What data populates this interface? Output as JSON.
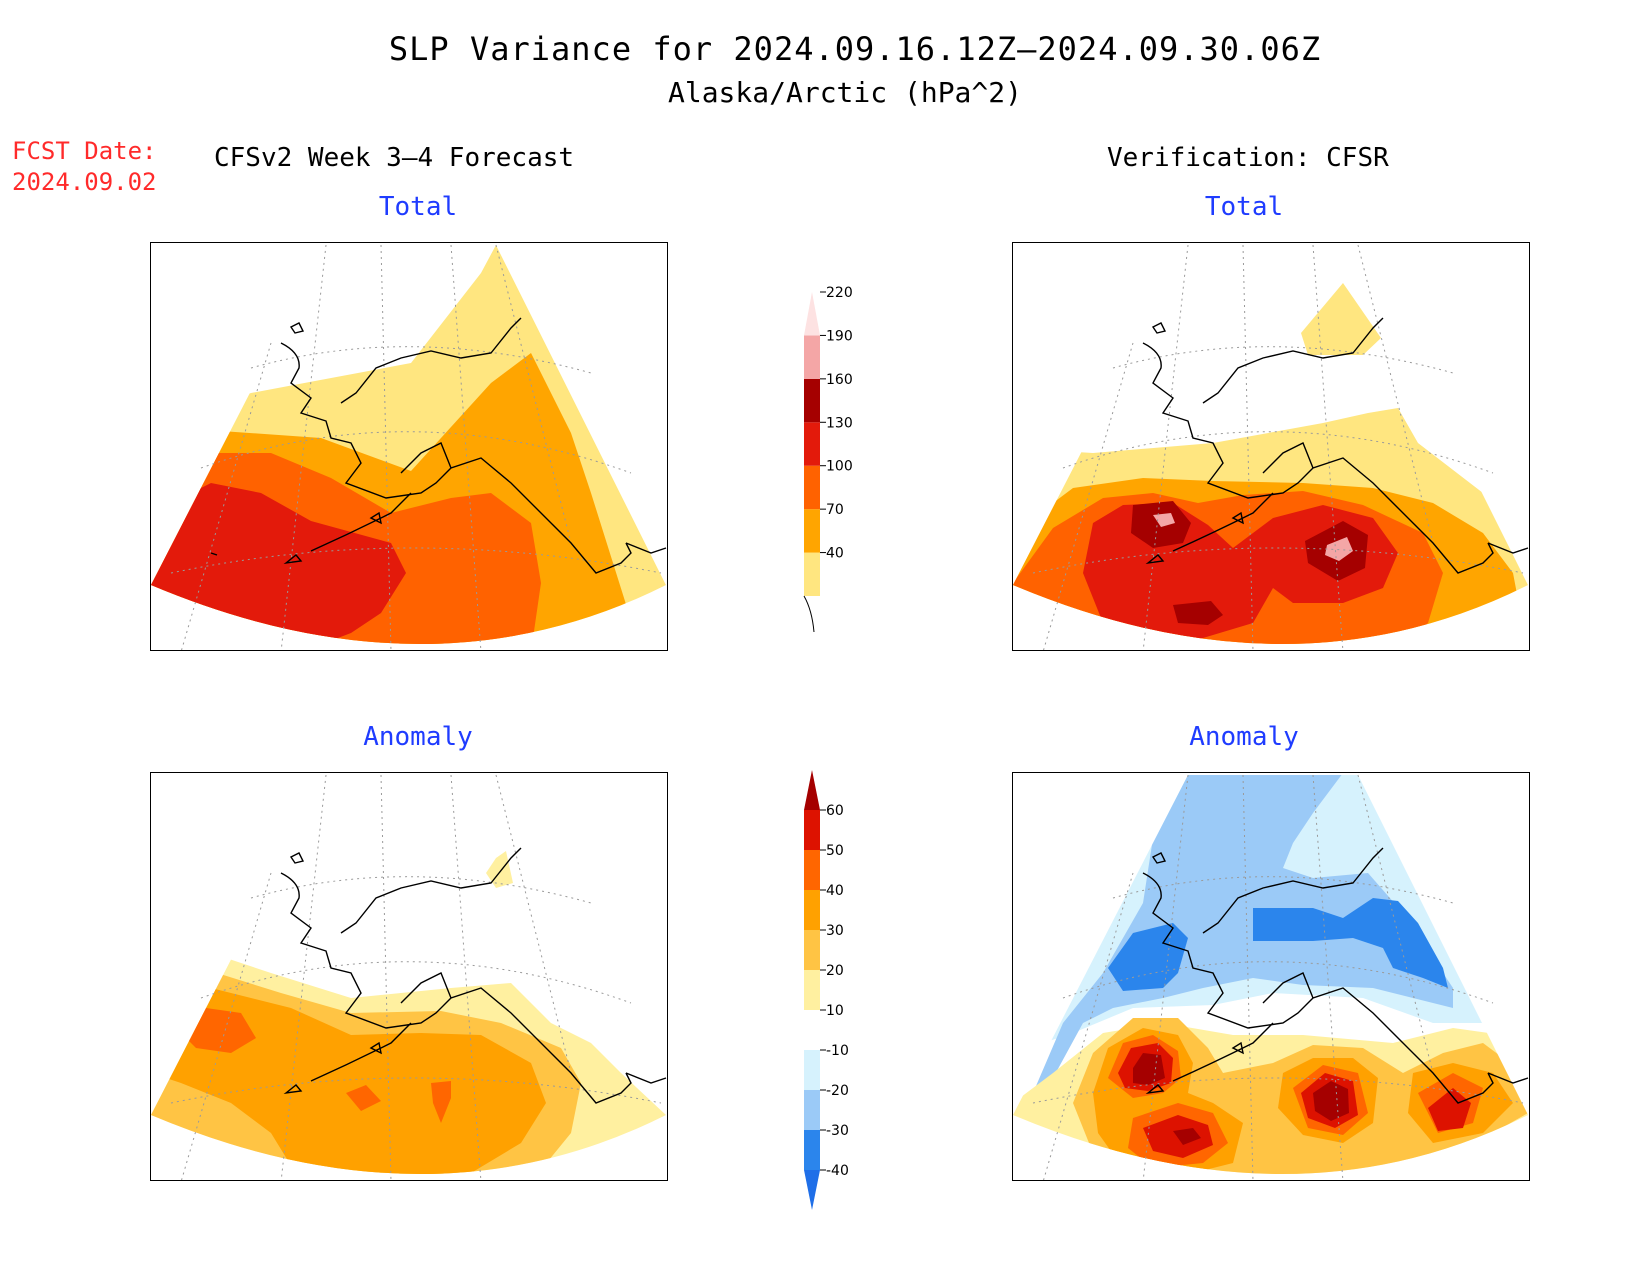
{
  "header": {
    "title": "SLP Variance for 2024.09.16.12Z–2024.09.30.06Z",
    "subtitle": "Alaska/Arctic (hPa^2)",
    "fcst_label": "FCST Date:",
    "fcst_date": "2024.09.02",
    "left_column": "CFSv2 Week 3–4 Forecast",
    "right_column": "Verification: CFSR"
  },
  "panels": {
    "fcst_total": {
      "title": "Total"
    },
    "fcst_anom": {
      "title": "Anomaly"
    },
    "ver_total": {
      "title": "Total"
    },
    "ver_anom": {
      "title": "Anomaly"
    }
  },
  "colorbars": {
    "total": {
      "levels": [
        "40",
        "70",
        "100",
        "130",
        "160",
        "190",
        "220"
      ],
      "colors": [
        "#ffe680",
        "#ffa500",
        "#ff6200",
        "#e31a0b",
        "#a50000",
        "#f4a6a6",
        "#fde2e2"
      ]
    },
    "anomaly": {
      "levels": [
        "-40",
        "-30",
        "-20",
        "-10",
        "10",
        "20",
        "30",
        "40",
        "50",
        "60"
      ],
      "colors": [
        "#1f6fe8",
        "#2b85ec",
        "#9bcaf7",
        "#d6f2fd",
        "#ffffff",
        "#fff0a0",
        "#ffc444",
        "#ffa100",
        "#ff6600",
        "#dd1200",
        "#a50000"
      ]
    }
  },
  "colors": {
    "light_yellow": "#ffe680",
    "pale_yellow": "#fff0a0",
    "light_orange": "#ffc444",
    "orange": "#ffa500",
    "dark_orange": "#ff6200",
    "red": "#e31a0b",
    "dark_red": "#a50000",
    "pink": "#f4a6a6",
    "light_blue": "#9bcaf7",
    "pale_blue": "#d6f2fd",
    "blue": "#2b85ec",
    "title_blue": "#1f3cff",
    "fcst_red": "#ff2a2a"
  }
}
